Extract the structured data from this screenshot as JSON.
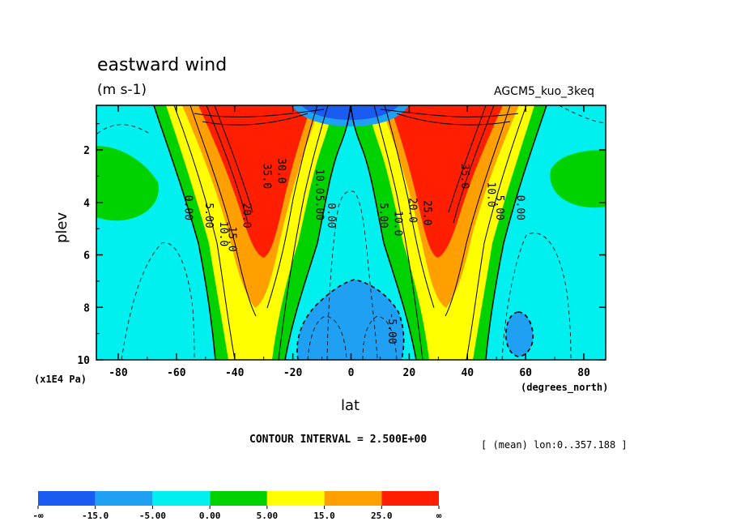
{
  "header": {
    "title": "eastward wind",
    "units": "(m s-1)",
    "model": "AGCM5_kuo_3keq",
    "y_scale_note": "(x1E4 Pa)",
    "x_units": "(degrees_north)",
    "x_label": "lat",
    "contour_interval": "CONTOUR INTERVAL = 2.500E+00",
    "mean_info": "[ (mean) lon:0..357.188 ]"
  },
  "chart_data": {
    "type": "heatmap",
    "title": "eastward wind",
    "xlabel": "lat",
    "ylabel": "plev",
    "xlim": [
      -87.5,
      87.5
    ],
    "ylim": [
      10,
      0.3
    ],
    "x_ticks": [
      -80,
      -60,
      -40,
      -20,
      0,
      20,
      40,
      60,
      80
    ],
    "x_tick_labels": [
      "-80",
      "-60",
      "-40",
      "-20",
      "0",
      "20",
      "40",
      "60",
      "80"
    ],
    "y_ticks": [
      2,
      4,
      6,
      8,
      10
    ],
    "y_tick_labels": [
      "2",
      "4",
      "6",
      "8",
      "10"
    ],
    "contour_labels": [
      {
        "text": "0.00",
        "lat": -57,
        "plev": 4.2
      },
      {
        "text": "5.00",
        "lat": -50,
        "plev": 4.5
      },
      {
        "text": "10.0",
        "lat": -45,
        "plev": 5.2
      },
      {
        "text": "15.0",
        "lat": -42,
        "plev": 5.4
      },
      {
        "text": "20.0",
        "lat": -37,
        "plev": 4.5
      },
      {
        "text": "35.0",
        "lat": -30,
        "plev": 3.0
      },
      {
        "text": "30.0",
        "lat": -25,
        "plev": 2.8
      },
      {
        "text": "10.0",
        "lat": -12,
        "plev": 3.2
      },
      {
        "text": "5.00",
        "lat": -12,
        "plev": 4.2
      },
      {
        "text": "0.00",
        "lat": -8,
        "plev": 4.5
      },
      {
        "text": "5.00",
        "lat": 10,
        "plev": 4.5
      },
      {
        "text": "10.0",
        "lat": 15,
        "plev": 4.8
      },
      {
        "text": "20.0",
        "lat": 20,
        "plev": 4.3
      },
      {
        "text": "25.0",
        "lat": 25,
        "plev": 4.4
      },
      {
        "text": "35.0",
        "lat": 38,
        "plev": 3.0
      },
      {
        "text": "10.0",
        "lat": 47,
        "plev": 3.7
      },
      {
        "text": "5.00",
        "lat": 50,
        "plev": 4.2
      },
      {
        "text": "0.00",
        "lat": 57,
        "plev": 4.2
      },
      {
        "text": "-5.00",
        "lat": 13,
        "plev": 8.8
      }
    ],
    "legend": {
      "placement": "bottom",
      "colors": [
        "#1a5cf2",
        "#1fa0f2",
        "#00f0f0",
        "#00d200",
        "#ffff00",
        "#ffa000",
        "#ff1e00"
      ],
      "labels": [
        "-∞",
        "-15.0",
        "-5.00",
        "0.00",
        "5.00",
        "15.0",
        "25.0",
        "∞"
      ]
    }
  }
}
